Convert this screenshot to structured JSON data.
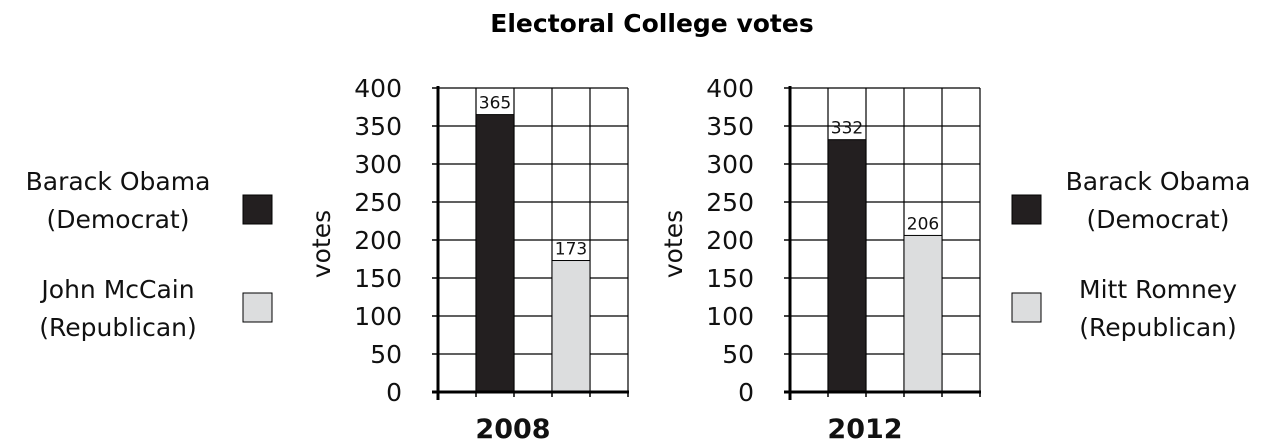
{
  "title": "Electoral College votes",
  "colors": {
    "democrat": "#231f20",
    "republican": "#dcddde",
    "frame": "#000000"
  },
  "chart_data": [
    {
      "type": "bar",
      "categories": [
        "2008"
      ],
      "ylabel": "votes",
      "ylim": [
        0,
        400
      ],
      "yticks": [
        0,
        50,
        100,
        150,
        200,
        250,
        300,
        350,
        400
      ],
      "grid": true,
      "legend_position": "left",
      "series": [
        {
          "name": "Barack Obama (Democrat)",
          "name_lines": [
            "Barack Obama",
            "(Democrat)"
          ],
          "party": "democrat",
          "values": [
            365
          ],
          "data_label": "365"
        },
        {
          "name": "John McCain (Republican)",
          "name_lines": [
            "John McCain",
            "(Republican)"
          ],
          "party": "republican",
          "values": [
            173
          ],
          "data_label": "173"
        }
      ]
    },
    {
      "type": "bar",
      "categories": [
        "2012"
      ],
      "ylabel": "votes",
      "ylim": [
        0,
        400
      ],
      "yticks": [
        0,
        50,
        100,
        150,
        200,
        250,
        300,
        350,
        400
      ],
      "grid": true,
      "legend_position": "right",
      "series": [
        {
          "name": "Barack Obama (Democrat)",
          "name_lines": [
            "Barack Obama",
            "(Democrat)"
          ],
          "party": "democrat",
          "values": [
            332
          ],
          "data_label": "332"
        },
        {
          "name": "Mitt Romney (Republican)",
          "name_lines": [
            "Mitt Romney",
            "(Republican)"
          ],
          "party": "republican",
          "values": [
            206
          ],
          "data_label": "206"
        }
      ]
    }
  ]
}
